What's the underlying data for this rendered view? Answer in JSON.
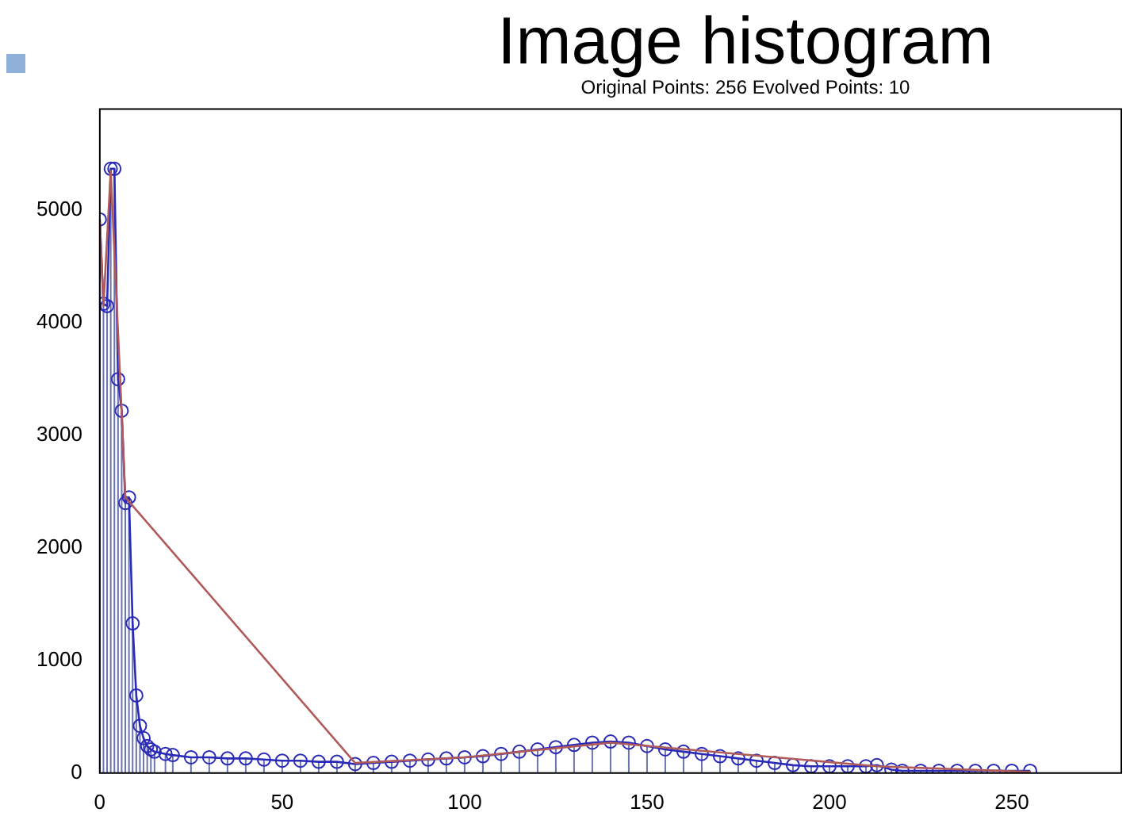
{
  "chart_data": {
    "type": "lollipop",
    "title": "Image histogram",
    "subtitle": "Original Points: 256   Evolved Points: 10",
    "xlim": [
      0,
      280
    ],
    "xticks": [
      0,
      50,
      100,
      150,
      200,
      250
    ],
    "ylim": [
      0,
      5900
    ],
    "yticks": [
      0,
      1000,
      2000,
      3000,
      4000,
      5000
    ],
    "grid": false,
    "legend": false,
    "marker": "circle",
    "series": [
      {
        "color": "#2a2ab8",
        "x": [
          0,
          1,
          2,
          3,
          4,
          5,
          6,
          7,
          8,
          9,
          10,
          11,
          12,
          13,
          14,
          15,
          18,
          20,
          25,
          30,
          35,
          40,
          45,
          50,
          55,
          60,
          65,
          70,
          75,
          80,
          85,
          90,
          95,
          100,
          105,
          110,
          115,
          120,
          125,
          130,
          135,
          140,
          145,
          150,
          155,
          160,
          165,
          170,
          175,
          180,
          185,
          190,
          195,
          200,
          205,
          210,
          213,
          217,
          220,
          225,
          230,
          235,
          240,
          245,
          250,
          255
        ],
        "values": [
          4920,
          4170,
          4150,
          5370,
          5370,
          3500,
          3220,
          2400,
          2450,
          1330,
          690,
          420,
          310,
          240,
          210,
          190,
          170,
          160,
          140,
          140,
          130,
          130,
          120,
          110,
          110,
          100,
          100,
          80,
          90,
          100,
          110,
          120,
          130,
          140,
          150,
          170,
          190,
          210,
          230,
          250,
          270,
          280,
          270,
          240,
          210,
          190,
          170,
          150,
          130,
          110,
          90,
          70,
          60,
          60,
          60,
          60,
          70,
          30,
          20,
          20,
          20,
          20,
          20,
          20,
          20,
          20
        ]
      },
      {
        "type": "line",
        "color": "#2a2ab8",
        "marker": "none",
        "x": [
          0,
          1,
          2,
          3,
          4,
          5,
          6,
          7,
          8,
          9,
          10,
          11,
          12,
          13,
          14,
          15,
          18,
          20,
          25,
          30,
          35,
          40,
          45,
          50,
          55,
          60,
          65,
          70,
          75,
          80,
          85,
          90,
          95,
          100,
          105,
          110,
          115,
          120,
          125,
          130,
          135,
          140,
          145,
          150,
          155,
          160,
          165,
          170,
          175,
          180,
          185,
          190,
          195,
          200,
          205,
          210,
          213,
          217,
          220,
          225,
          230,
          235,
          240,
          245,
          250,
          255
        ],
        "values": [
          4920,
          4170,
          4150,
          5370,
          5370,
          3500,
          3220,
          2400,
          2450,
          1330,
          690,
          420,
          310,
          240,
          210,
          190,
          170,
          160,
          140,
          140,
          130,
          130,
          120,
          110,
          110,
          100,
          100,
          80,
          90,
          100,
          110,
          120,
          130,
          140,
          150,
          170,
          190,
          210,
          230,
          250,
          270,
          280,
          270,
          240,
          210,
          190,
          170,
          150,
          130,
          110,
          90,
          70,
          60,
          60,
          60,
          60,
          70,
          30,
          20,
          20,
          20,
          20,
          20,
          20,
          20,
          20
        ]
      },
      {
        "type": "line",
        "color": "#b05a5a",
        "marker": "none",
        "x": [
          0,
          1,
          3,
          6,
          7,
          70,
          100,
          140,
          213,
          255
        ],
        "values": [
          4900,
          4150,
          5350,
          3200,
          2450,
          90,
          140,
          270,
          60,
          10
        ]
      }
    ]
  }
}
